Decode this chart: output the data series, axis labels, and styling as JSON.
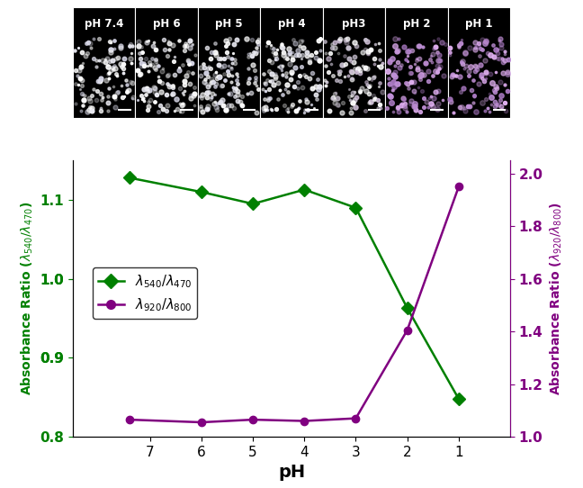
{
  "ph_values": [
    7.4,
    6,
    5,
    4,
    3,
    2,
    1
  ],
  "green_ratio": [
    1.128,
    1.11,
    1.095,
    1.113,
    1.09,
    0.963,
    0.848
  ],
  "purple_ratio": [
    1.065,
    1.055,
    1.065,
    1.06,
    1.07,
    1.405,
    1.95
  ],
  "green_color": "#008000",
  "purple_color": "#800080",
  "xlabel": "pH",
  "left_ylim": [
    0.8,
    1.15
  ],
  "right_ylim": [
    1.0,
    2.05
  ],
  "left_yticks": [
    0.8,
    0.9,
    0.9,
    1.0,
    1.0,
    1.1
  ],
  "left_yticklabels": [
    "0.8",
    "0.9",
    "0.9",
    "1.0",
    "1.0",
    "1.1"
  ],
  "right_yticks": [
    1.0,
    1.2,
    1.4,
    1.6,
    1.8,
    2.0
  ],
  "right_yticklabels": [
    "1.0",
    "1.2",
    "1.4",
    "1.6",
    "1.8",
    "2.0"
  ],
  "xticks": [
    7,
    6,
    5,
    4,
    3,
    2,
    1
  ],
  "xlim": [
    8.5,
    0
  ],
  "photo_labels": [
    "pH 7.4",
    "pH 6",
    "pH 5",
    "pH 4",
    "pH3",
    "pH 2",
    "pH 1"
  ],
  "marker_size": 7,
  "linewidth": 1.8,
  "dot_seeds": [
    0,
    42,
    84,
    126,
    168,
    210,
    252
  ],
  "dot_counts": [
    120,
    130,
    140,
    130,
    120,
    130,
    120
  ]
}
